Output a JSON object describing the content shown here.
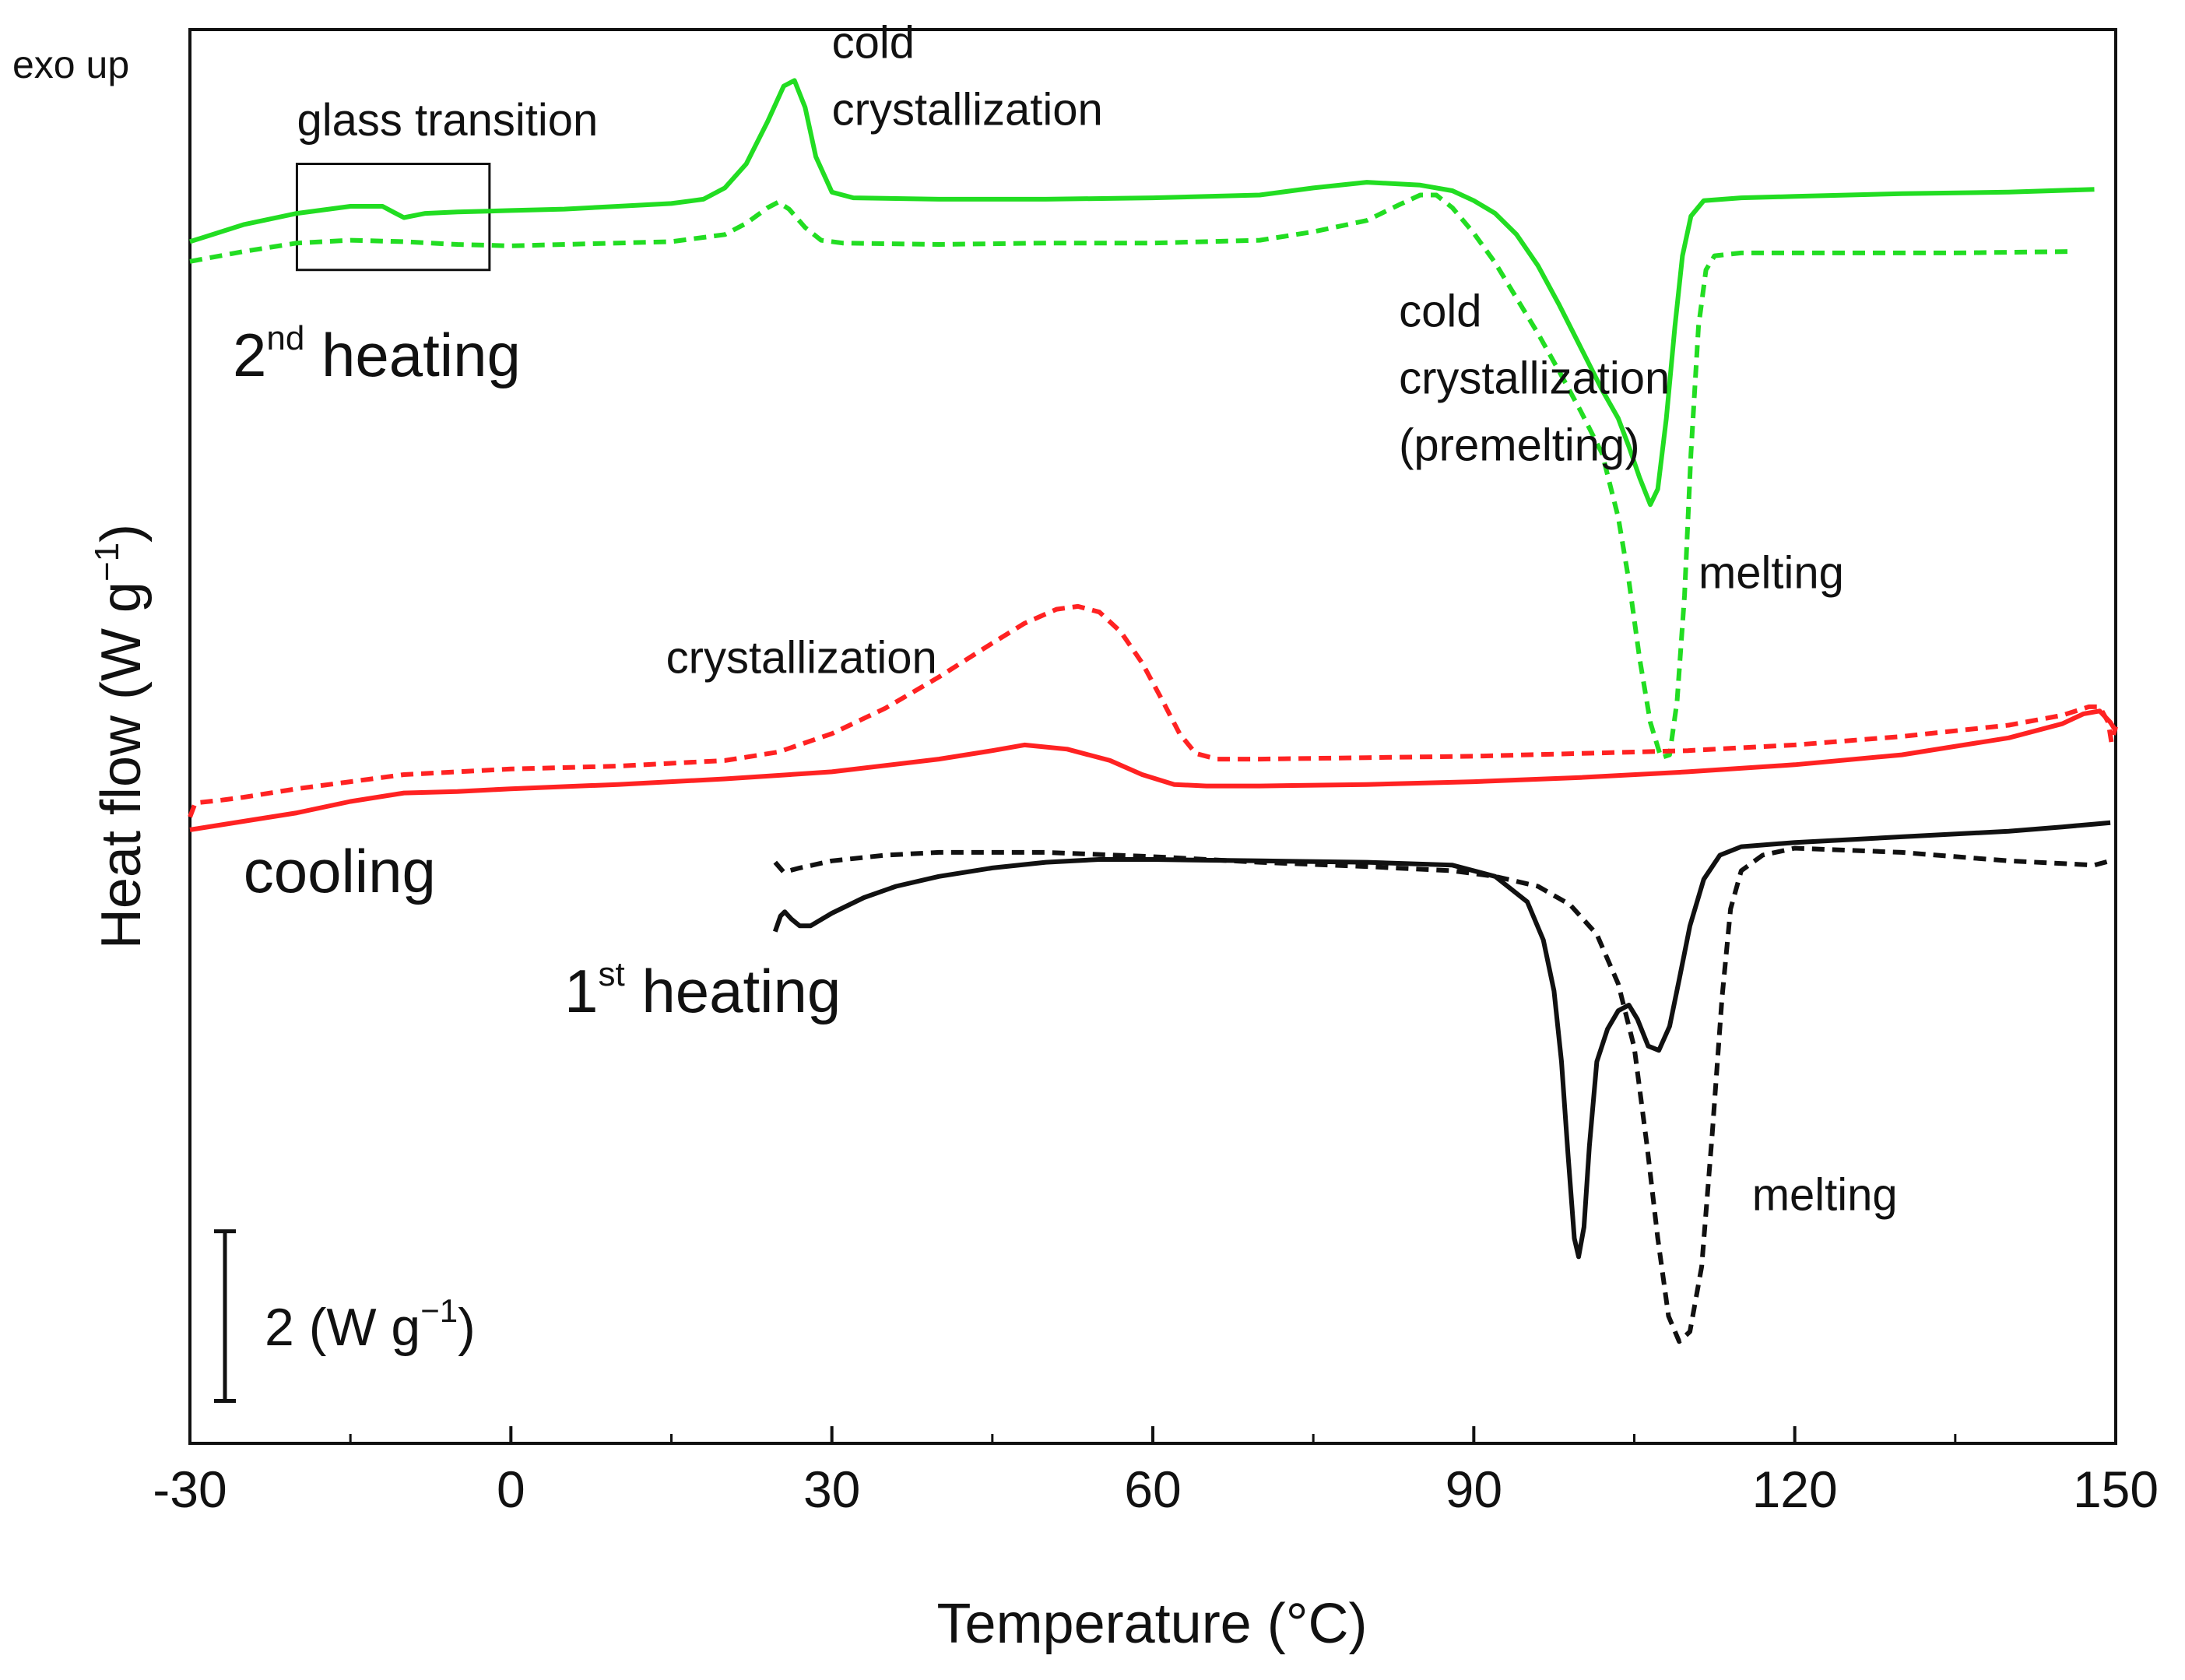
{
  "chart_data": {
    "type": "line",
    "title": "",
    "xlabel": "Temperature (°C)",
    "ylabel": "Heat flow (W g",
    "ylabel_sup": "−1",
    "ylabel_tail": ")",
    "xlim": [
      -30,
      150
    ],
    "ylim": [
      0,
      100
    ],
    "y_units": "arbitrary offset scale (y-axis has no numeric ticks)",
    "xticks": [
      -30,
      0,
      30,
      60,
      90,
      120,
      150
    ],
    "xtick_labels": [
      "-30",
      "0",
      "30",
      "60",
      "90",
      "120",
      "150"
    ],
    "xminor_ticks": [
      -15,
      15,
      45,
      75,
      105,
      135
    ],
    "grid": false,
    "legend": "none",
    "exo_label": "exo up",
    "scale_bar": {
      "label": "2 (W g",
      "label_sup": "−1",
      "label_tail": ")",
      "value": 2,
      "y_from": 3,
      "y_to": 15
    },
    "annotation_box": {
      "x_from": -20,
      "x_to": -2,
      "y_from": 83,
      "y_to": 90.5
    },
    "series": [
      {
        "name": "2nd heating (solid)",
        "color": "#22dd22",
        "dash": "solid",
        "points": [
          [
            -30,
            85
          ],
          [
            -25,
            86.2
          ],
          [
            -20,
            87
          ],
          [
            -15,
            87.5
          ],
          [
            -12,
            87.5
          ],
          [
            -11,
            87.1
          ],
          [
            -10,
            86.7
          ],
          [
            -8,
            87
          ],
          [
            -5,
            87.1
          ],
          [
            0,
            87.2
          ],
          [
            5,
            87.3
          ],
          [
            10,
            87.5
          ],
          [
            15,
            87.7
          ],
          [
            18,
            88
          ],
          [
            20,
            88.8
          ],
          [
            22,
            90.5
          ],
          [
            24,
            93.5
          ],
          [
            25.5,
            96
          ],
          [
            26.5,
            96.4
          ],
          [
            27.5,
            94.5
          ],
          [
            28.5,
            91
          ],
          [
            30,
            88.5
          ],
          [
            32,
            88.1
          ],
          [
            40,
            88
          ],
          [
            50,
            88
          ],
          [
            60,
            88.1
          ],
          [
            70,
            88.3
          ],
          [
            75,
            88.8
          ],
          [
            80,
            89.2
          ],
          [
            85,
            89
          ],
          [
            88,
            88.6
          ],
          [
            90,
            87.9
          ],
          [
            92,
            87
          ],
          [
            94,
            85.5
          ],
          [
            96,
            83.3
          ],
          [
            98,
            80.5
          ],
          [
            100,
            77.5
          ],
          [
            102,
            74.5
          ],
          [
            103.5,
            72.5
          ],
          [
            104.5,
            70.5
          ],
          [
            105.5,
            68.3
          ],
          [
            106.5,
            66.4
          ],
          [
            107.2,
            67.5
          ],
          [
            108,
            72.5
          ],
          [
            108.8,
            79
          ],
          [
            109.5,
            84
          ],
          [
            110.3,
            86.8
          ],
          [
            111.5,
            87.9
          ],
          [
            115,
            88.1
          ],
          [
            120,
            88.2
          ],
          [
            130,
            88.4
          ],
          [
            140,
            88.5
          ],
          [
            148,
            88.7
          ]
        ]
      },
      {
        "name": "2nd heating (dashed)",
        "color": "#22dd22",
        "dash": "dashed",
        "points": [
          [
            -30,
            83.6
          ],
          [
            -25,
            84.3
          ],
          [
            -20,
            84.9
          ],
          [
            -15,
            85.1
          ],
          [
            -10,
            85
          ],
          [
            -5,
            84.8
          ],
          [
            0,
            84.7
          ],
          [
            5,
            84.8
          ],
          [
            10,
            84.9
          ],
          [
            15,
            85
          ],
          [
            20,
            85.5
          ],
          [
            22,
            86.3
          ],
          [
            24,
            87.4
          ],
          [
            25,
            87.8
          ],
          [
            26,
            87.3
          ],
          [
            27.5,
            86
          ],
          [
            29,
            85.1
          ],
          [
            31,
            84.9
          ],
          [
            40,
            84.8
          ],
          [
            50,
            84.9
          ],
          [
            60,
            84.9
          ],
          [
            70,
            85.1
          ],
          [
            75,
            85.7
          ],
          [
            80,
            86.5
          ],
          [
            83,
            87.6
          ],
          [
            85,
            88.3
          ],
          [
            86.5,
            88.3
          ],
          [
            88,
            87.4
          ],
          [
            90,
            85.6
          ],
          [
            92,
            83.5
          ],
          [
            94,
            81
          ],
          [
            96,
            78.5
          ],
          [
            98,
            75.8
          ],
          [
            100,
            73
          ],
          [
            102,
            70
          ],
          [
            103.5,
            65.5
          ],
          [
            104.5,
            61
          ],
          [
            105.5,
            55.5
          ],
          [
            106.5,
            51
          ],
          [
            107.5,
            48.5
          ],
          [
            108.3,
            48.7
          ],
          [
            109,
            52.5
          ],
          [
            109.7,
            60
          ],
          [
            110.3,
            70
          ],
          [
            111,
            79
          ],
          [
            111.7,
            83
          ],
          [
            112.5,
            84
          ],
          [
            115,
            84.2
          ],
          [
            125,
            84.2
          ],
          [
            135,
            84.2
          ],
          [
            146,
            84.3
          ]
        ]
      },
      {
        "name": "cooling (solid)",
        "color": "#ff2222",
        "dash": "solid",
        "points": [
          [
            -30,
            43.4
          ],
          [
            -25,
            44
          ],
          [
            -20,
            44.6
          ],
          [
            -15,
            45.4
          ],
          [
            -10,
            46
          ],
          [
            -5,
            46.1
          ],
          [
            0,
            46.3
          ],
          [
            10,
            46.6
          ],
          [
            20,
            47
          ],
          [
            30,
            47.5
          ],
          [
            40,
            48.4
          ],
          [
            45,
            49
          ],
          [
            48,
            49.4
          ],
          [
            52,
            49.1
          ],
          [
            56,
            48.3
          ],
          [
            59,
            47.3
          ],
          [
            62,
            46.6
          ],
          [
            65,
            46.5
          ],
          [
            70,
            46.5
          ],
          [
            80,
            46.6
          ],
          [
            90,
            46.8
          ],
          [
            100,
            47.1
          ],
          [
            110,
            47.5
          ],
          [
            120,
            48
          ],
          [
            130,
            48.7
          ],
          [
            140,
            49.9
          ],
          [
            145,
            50.9
          ],
          [
            147,
            51.6
          ],
          [
            148.5,
            51.8
          ],
          [
            149.5,
            51
          ],
          [
            150,
            50.4
          ]
        ]
      },
      {
        "name": "cooling (dashed)",
        "color": "#ff2222",
        "dash": "dashed",
        "points": [
          [
            -30,
            44.3
          ],
          [
            -29.5,
            45.3
          ],
          [
            -27,
            45.5
          ],
          [
            -25,
            45.7
          ],
          [
            -20,
            46.3
          ],
          [
            -15,
            46.8
          ],
          [
            -10,
            47.3
          ],
          [
            -5,
            47.5
          ],
          [
            0,
            47.7
          ],
          [
            10,
            47.9
          ],
          [
            20,
            48.3
          ],
          [
            25,
            48.9
          ],
          [
            30,
            50.2
          ],
          [
            35,
            52
          ],
          [
            40,
            54.2
          ],
          [
            45,
            56.6
          ],
          [
            48,
            58
          ],
          [
            51,
            59
          ],
          [
            53,
            59.2
          ],
          [
            55,
            58.8
          ],
          [
            57,
            57.4
          ],
          [
            59,
            55.2
          ],
          [
            61,
            52.4
          ],
          [
            62.5,
            50.2
          ],
          [
            64,
            48.8
          ],
          [
            66,
            48.4
          ],
          [
            70,
            48.4
          ],
          [
            80,
            48.5
          ],
          [
            90,
            48.6
          ],
          [
            100,
            48.8
          ],
          [
            110,
            49
          ],
          [
            120,
            49.4
          ],
          [
            130,
            50
          ],
          [
            140,
            50.8
          ],
          [
            145,
            51.5
          ],
          [
            147.5,
            52.1
          ],
          [
            148.5,
            52.1
          ],
          [
            149.3,
            51
          ],
          [
            149.6,
            49.6
          ],
          [
            150,
            50.7
          ]
        ]
      },
      {
        "name": "1st heating (solid)",
        "color": "#111111",
        "dash": "solid",
        "points": [
          [
            24.7,
            36.2
          ],
          [
            25.2,
            37.3
          ],
          [
            25.6,
            37.6
          ],
          [
            26.2,
            37.1
          ],
          [
            27,
            36.6
          ],
          [
            28,
            36.6
          ],
          [
            30,
            37.5
          ],
          [
            33,
            38.6
          ],
          [
            36,
            39.4
          ],
          [
            40,
            40.1
          ],
          [
            45,
            40.7
          ],
          [
            50,
            41.1
          ],
          [
            55,
            41.3
          ],
          [
            60,
            41.3
          ],
          [
            70,
            41.2
          ],
          [
            80,
            41.1
          ],
          [
            88,
            40.9
          ],
          [
            92,
            40.1
          ],
          [
            95,
            38.3
          ],
          [
            96.5,
            35.6
          ],
          [
            97.5,
            32
          ],
          [
            98.2,
            27
          ],
          [
            98.8,
            20.5
          ],
          [
            99.4,
            14.5
          ],
          [
            99.8,
            13.2
          ],
          [
            100.3,
            15.3
          ],
          [
            100.8,
            21
          ],
          [
            101.5,
            27
          ],
          [
            102.5,
            29.3
          ],
          [
            103.5,
            30.6
          ],
          [
            104.5,
            31
          ],
          [
            105.3,
            30
          ],
          [
            106.3,
            28.1
          ],
          [
            107.3,
            27.8
          ],
          [
            108.3,
            29.5
          ],
          [
            109.2,
            32.8
          ],
          [
            110.2,
            36.6
          ],
          [
            111.5,
            39.9
          ],
          [
            113,
            41.6
          ],
          [
            115,
            42.2
          ],
          [
            120,
            42.5
          ],
          [
            130,
            42.9
          ],
          [
            140,
            43.3
          ],
          [
            145,
            43.6
          ],
          [
            148,
            43.8
          ],
          [
            149.5,
            43.9
          ]
        ]
      },
      {
        "name": "1st heating (dashed)",
        "color": "#111111",
        "dash": "dashed",
        "points": [
          [
            24.7,
            41.1
          ],
          [
            25.5,
            40.4
          ],
          [
            27,
            40.7
          ],
          [
            30,
            41.2
          ],
          [
            35,
            41.6
          ],
          [
            40,
            41.8
          ],
          [
            50,
            41.8
          ],
          [
            60,
            41.5
          ],
          [
            70,
            41.1
          ],
          [
            80,
            40.8
          ],
          [
            88,
            40.5
          ],
          [
            92,
            40.1
          ],
          [
            96,
            39.4
          ],
          [
            99,
            38.1
          ],
          [
            101.5,
            36
          ],
          [
            103.5,
            32.5
          ],
          [
            105,
            28
          ],
          [
            106.2,
            21
          ],
          [
            107.2,
            14.5
          ],
          [
            108.2,
            9
          ],
          [
            109.2,
            7.2
          ],
          [
            110.2,
            7.9
          ],
          [
            111.3,
            12.5
          ],
          [
            112.3,
            22
          ],
          [
            113.2,
            31.5
          ],
          [
            114,
            37.8
          ],
          [
            115,
            40.5
          ],
          [
            117,
            41.6
          ],
          [
            120,
            42.1
          ],
          [
            130,
            41.8
          ],
          [
            140,
            41.2
          ],
          [
            148,
            40.9
          ],
          [
            149.5,
            41.2
          ]
        ]
      }
    ],
    "annotations": [
      {
        "lines": [
          "glass transition"
        ],
        "x": -20,
        "y": 92.5
      },
      {
        "lines": [
          "cold",
          "crystallization"
        ],
        "x": 30,
        "y": 98
      },
      {
        "lines": [
          "cold",
          "crystallization",
          "(premelting)"
        ],
        "x": 83,
        "y": 79
      },
      {
        "lines": [
          "melting"
        ],
        "x": 111,
        "y": 60.5
      },
      {
        "lines": [
          "crystallization"
        ],
        "x": 14.5,
        "y": 54.5
      },
      {
        "lines": [
          "melting"
        ],
        "x": 116,
        "y": 16.5
      }
    ],
    "curve_labels": [
      {
        "text": "2",
        "sup": "nd",
        "tail": " heating",
        "x": -26,
        "y": 75.5
      },
      {
        "text": "cooling",
        "x": -25,
        "y": 39
      },
      {
        "text": "1",
        "sup": "st",
        "tail": " heating",
        "x": 5,
        "y": 30.5
      }
    ]
  }
}
